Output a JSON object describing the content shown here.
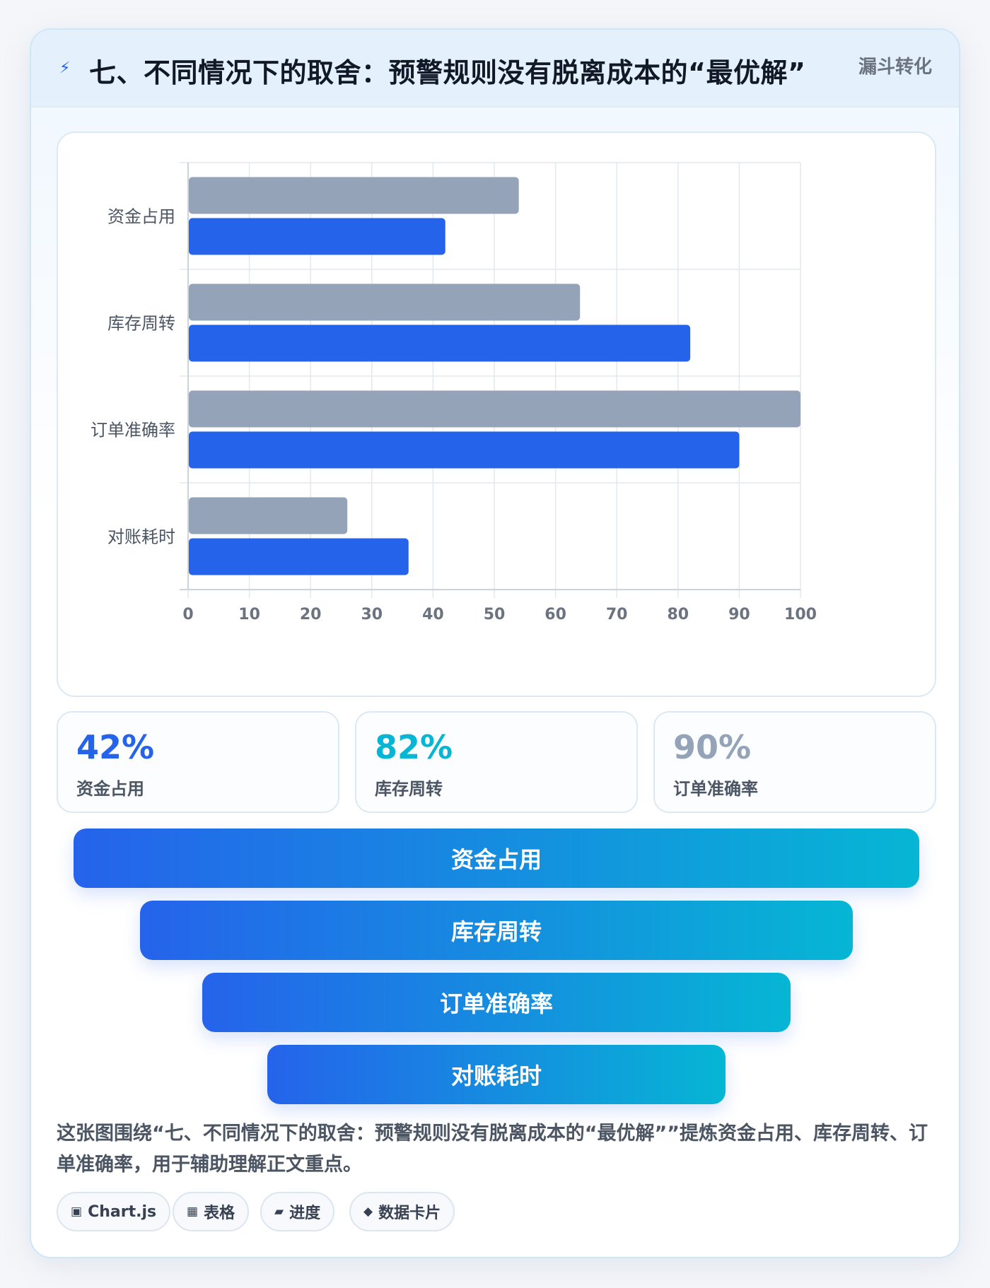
{
  "header": {
    "title": "七、不同情况下的取舍：预警规则没有脱离成本的“最优解”",
    "tag": "漏斗转化",
    "bolt_icon": "lightning-icon"
  },
  "colors": {
    "series_gray": "#94a3b8",
    "series_blue": "#2563eb",
    "stat_blue": "#2563eb",
    "stat_cyan": "#06b6d4",
    "stat_gray": "#94a3b8",
    "funnel_start": "#2563eb",
    "funnel_end": "#06b6d4"
  },
  "chart_data": {
    "type": "bar",
    "orientation": "horizontal",
    "categories": [
      "资金占用",
      "库存周转",
      "订单准确率",
      "对账耗时"
    ],
    "series": [
      {
        "values": [
          54,
          64,
          100,
          26
        ]
      },
      {
        "values": [
          42,
          82,
          90,
          36
        ]
      }
    ],
    "xlim": [
      0,
      100
    ],
    "xticks": [
      "0",
      "10",
      "20",
      "30",
      "40",
      "50",
      "60",
      "70",
      "80",
      "90",
      "100"
    ],
    "grid": true,
    "legend": "none"
  },
  "stats": [
    {
      "value": "42%",
      "label": "资金占用"
    },
    {
      "value": "82%",
      "label": "库存周转"
    },
    {
      "value": "90%",
      "label": "订单准确率"
    }
  ],
  "funnel": [
    "资金占用",
    "库存周转",
    "订单准确率",
    "对账耗时"
  ],
  "description": "这张图围绕“七、不同情况下的取舍：预警规则没有脱离成本的“最优解””提炼资金占用、库存周转、订单准确率，用于辅助理解正文重点。",
  "chips": [
    {
      "icon": "▣",
      "label": "Chart.js"
    },
    {
      "icon": "▦",
      "label": "表格"
    },
    {
      "icon": "▰",
      "label": "进度"
    },
    {
      "icon": "◆",
      "label": "数据卡片"
    }
  ]
}
